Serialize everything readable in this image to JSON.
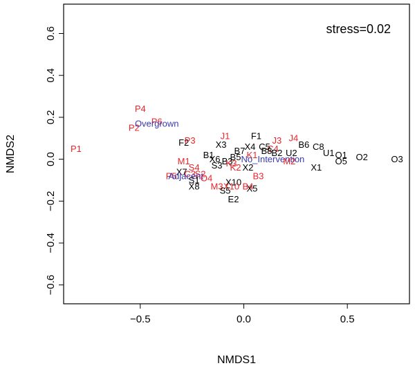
{
  "chart_data": {
    "type": "scatter",
    "xlabel": "NMDS1",
    "ylabel": "NMDS2",
    "annotation": "stress=0.02",
    "xlim": [
      -0.87,
      0.8
    ],
    "ylim": [
      -0.69,
      0.74
    ],
    "x_ticks": [
      -0.5,
      0.0,
      0.5
    ],
    "x_tick_labels": [
      "−0.5",
      "0.0",
      "0.5"
    ],
    "y_ticks": [
      -0.6,
      -0.4,
      -0.2,
      0.0,
      0.2,
      0.4,
      0.6
    ],
    "y_tick_labels": [
      "−0.6",
      "−0.4",
      "−0.2",
      "0.0",
      "0.2",
      "0.4",
      "0.6"
    ],
    "grid": false,
    "colors": {
      "black": "#000000",
      "red": "#e8252b",
      "blue": "#3a3ab0"
    },
    "labels": [
      {
        "text": "P1",
        "x": -0.81,
        "y": 0.05,
        "color": "red"
      },
      {
        "text": "P4",
        "x": -0.5,
        "y": 0.24,
        "color": "red"
      },
      {
        "text": "P2",
        "x": -0.53,
        "y": 0.15,
        "color": "red"
      },
      {
        "text": "P6",
        "x": -0.42,
        "y": 0.18,
        "color": "red"
      },
      {
        "text": "Overgrown",
        "x": -0.42,
        "y": 0.17,
        "color": "blue"
      },
      {
        "text": "F2",
        "x": -0.29,
        "y": 0.08,
        "color": "black"
      },
      {
        "text": "P3",
        "x": -0.26,
        "y": 0.09,
        "color": "red"
      },
      {
        "text": "J1",
        "x": -0.09,
        "y": 0.11,
        "color": "red"
      },
      {
        "text": "F1",
        "x": 0.06,
        "y": 0.11,
        "color": "black"
      },
      {
        "text": "X3",
        "x": -0.11,
        "y": 0.07,
        "color": "black"
      },
      {
        "text": "J3",
        "x": 0.16,
        "y": 0.09,
        "color": "red"
      },
      {
        "text": "J4",
        "x": 0.24,
        "y": 0.1,
        "color": "red"
      },
      {
        "text": "B6",
        "x": 0.29,
        "y": 0.07,
        "color": "black"
      },
      {
        "text": "C8",
        "x": 0.36,
        "y": 0.06,
        "color": "black"
      },
      {
        "text": "X4",
        "x": 0.03,
        "y": 0.06,
        "color": "black"
      },
      {
        "text": "C5",
        "x": 0.1,
        "y": 0.06,
        "color": "black"
      },
      {
        "text": "C4",
        "x": 0.14,
        "y": 0.05,
        "color": "red"
      },
      {
        "text": "B7",
        "x": -0.02,
        "y": 0.04,
        "color": "black"
      },
      {
        "text": "B8",
        "x": 0.11,
        "y": 0.04,
        "color": "black"
      },
      {
        "text": "B2",
        "x": 0.16,
        "y": 0.03,
        "color": "black"
      },
      {
        "text": "U2",
        "x": 0.23,
        "y": 0.03,
        "color": "black"
      },
      {
        "text": "U1",
        "x": 0.41,
        "y": 0.03,
        "color": "black"
      },
      {
        "text": "O1",
        "x": 0.47,
        "y": 0.02,
        "color": "black"
      },
      {
        "text": "O2",
        "x": 0.57,
        "y": 0.01,
        "color": "black"
      },
      {
        "text": "O3",
        "x": 0.74,
        "y": 0.0,
        "color": "black"
      },
      {
        "text": "O5",
        "x": 0.47,
        "y": -0.01,
        "color": "black"
      },
      {
        "text": "B1",
        "x": -0.17,
        "y": 0.02,
        "color": "black"
      },
      {
        "text": "B5",
        "x": -0.04,
        "y": 0.01,
        "color": "black"
      },
      {
        "text": "K1",
        "x": 0.04,
        "y": 0.02,
        "color": "red"
      },
      {
        "text": "No_Intervention",
        "x": 0.14,
        "y": 0.0,
        "color": "blue"
      },
      {
        "text": "M2",
        "x": 0.22,
        "y": -0.01,
        "color": "red"
      },
      {
        "text": "X1",
        "x": 0.35,
        "y": -0.04,
        "color": "black"
      },
      {
        "text": "M1",
        "x": -0.29,
        "y": -0.01,
        "color": "red"
      },
      {
        "text": "X6",
        "x": -0.14,
        "y": 0.0,
        "color": "black"
      },
      {
        "text": "B3",
        "x": -0.08,
        "y": -0.01,
        "color": "black"
      },
      {
        "text": "S3",
        "x": -0.13,
        "y": -0.03,
        "color": "black"
      },
      {
        "text": "K3",
        "x": -0.06,
        "y": -0.02,
        "color": "red"
      },
      {
        "text": "K2",
        "x": -0.04,
        "y": -0.04,
        "color": "red"
      },
      {
        "text": "X2",
        "x": 0.02,
        "y": -0.04,
        "color": "black"
      },
      {
        "text": "S4",
        "x": -0.24,
        "y": -0.04,
        "color": "red"
      },
      {
        "text": "X7",
        "x": -0.3,
        "y": -0.06,
        "color": "black"
      },
      {
        "text": "C3",
        "x": -0.26,
        "y": -0.07,
        "color": "red"
      },
      {
        "text": "S2",
        "x": -0.21,
        "y": -0.07,
        "color": "red"
      },
      {
        "text": "P5",
        "x": -0.35,
        "y": -0.08,
        "color": "red"
      },
      {
        "text": "Adjacent",
        "x": -0.28,
        "y": -0.08,
        "color": "blue"
      },
      {
        "text": "S1",
        "x": -0.24,
        "y": -0.1,
        "color": "black"
      },
      {
        "text": "O4",
        "x": -0.18,
        "y": -0.09,
        "color": "red"
      },
      {
        "text": "X8",
        "x": -0.24,
        "y": -0.13,
        "color": "black"
      },
      {
        "text": "X10",
        "x": -0.05,
        "y": -0.11,
        "color": "black"
      },
      {
        "text": "B3",
        "x": 0.07,
        "y": -0.08,
        "color": "red"
      },
      {
        "text": "M3",
        "x": -0.13,
        "y": -0.13,
        "color": "red"
      },
      {
        "text": "X10",
        "x": -0.06,
        "y": -0.13,
        "color": "red"
      },
      {
        "text": "B4",
        "x": 0.02,
        "y": -0.13,
        "color": "red"
      },
      {
        "text": "X5",
        "x": 0.04,
        "y": -0.14,
        "color": "black"
      },
      {
        "text": "S5",
        "x": -0.09,
        "y": -0.15,
        "color": "black"
      },
      {
        "text": "E2",
        "x": -0.05,
        "y": -0.19,
        "color": "black"
      }
    ]
  }
}
